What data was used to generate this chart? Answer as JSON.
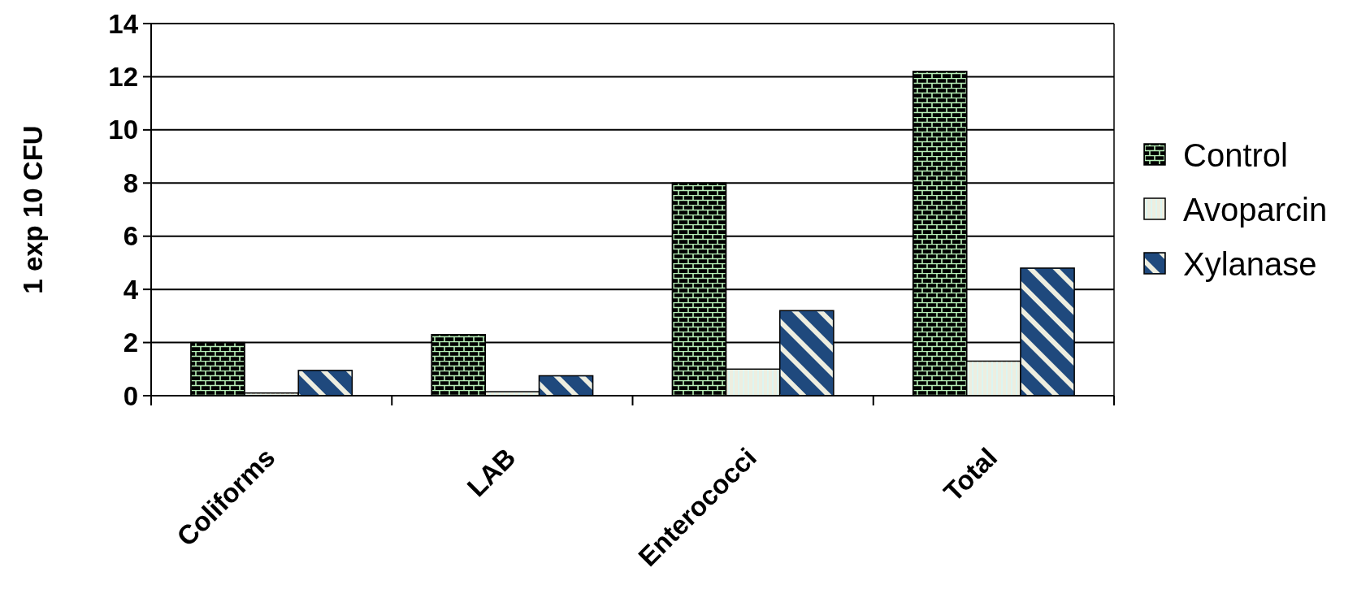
{
  "chart_data": {
    "type": "bar",
    "ylabel": "1 exp 10 CFU",
    "categories": [
      "Coliforms",
      "LAB",
      "Enterococci",
      "Total"
    ],
    "series": [
      {
        "name": "Control",
        "color": "#000000",
        "values": [
          2.0,
          2.3,
          8.0,
          12.2
        ]
      },
      {
        "name": "Avoparcin",
        "color": "#eeeee0",
        "values": [
          0.1,
          0.15,
          1.0,
          1.3
        ]
      },
      {
        "name": "Xylanase",
        "color": "#1f497d",
        "values": [
          0.95,
          0.75,
          3.2,
          4.8
        ]
      }
    ],
    "ylim": [
      0,
      14
    ],
    "yticks": [
      0,
      2,
      4,
      6,
      8,
      10,
      12,
      14
    ],
    "grid": "y",
    "legend": "right"
  }
}
